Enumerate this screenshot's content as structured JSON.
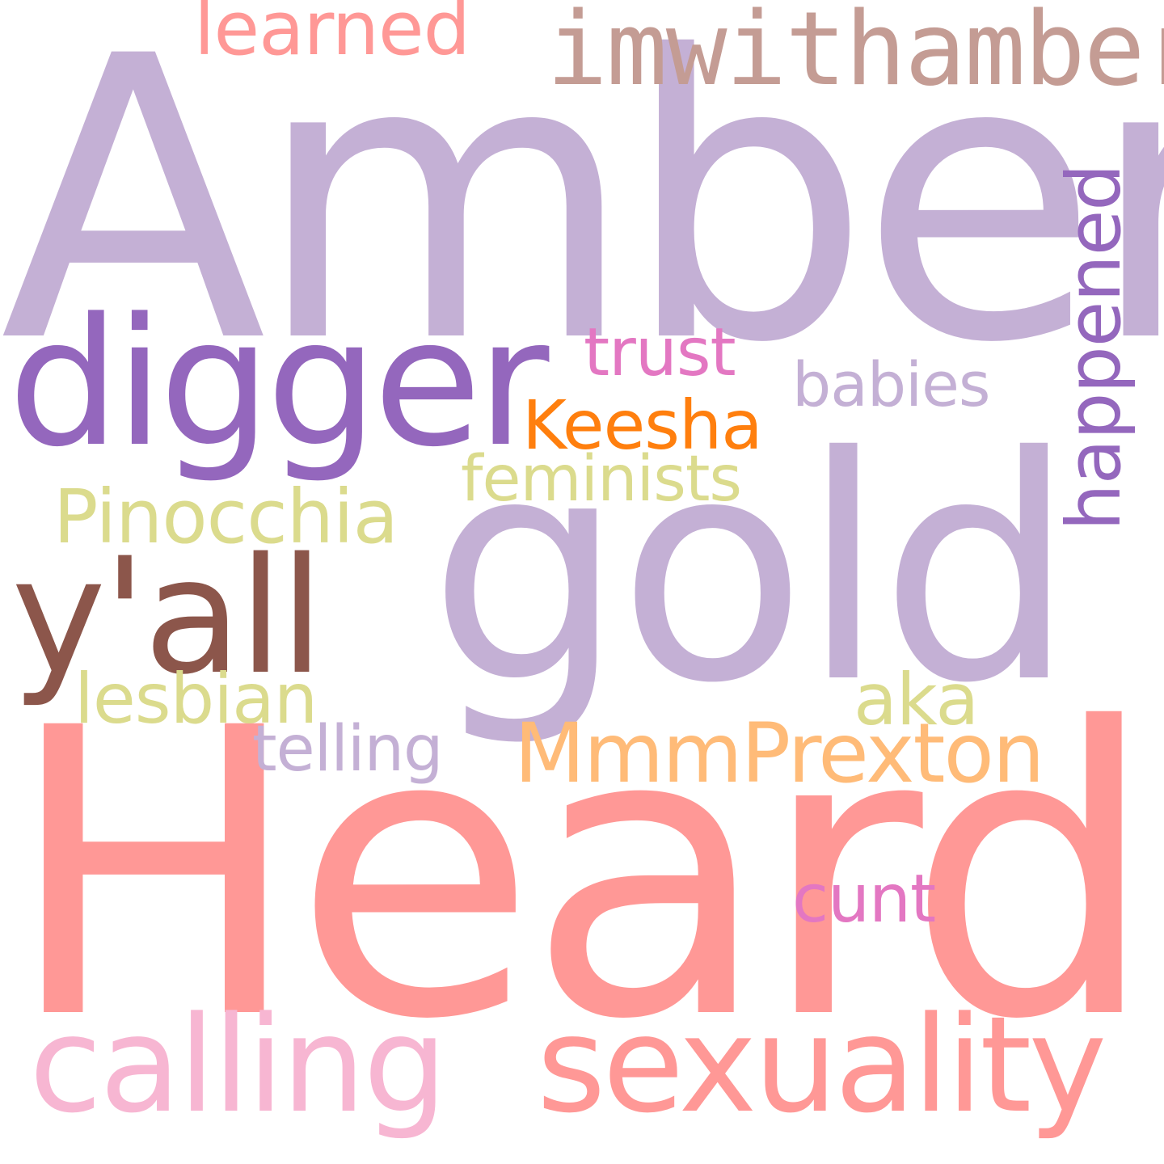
{
  "words": [
    {
      "text": "Amber",
      "color": "#c4b0d5"
    },
    {
      "text": "Heard",
      "color": "#ff9896"
    },
    {
      "text": "gold",
      "color": "#c4b0d5"
    },
    {
      "text": "digger",
      "color": "#9467bd"
    },
    {
      "text": "imwithamber",
      "color": "#c49c94"
    },
    {
      "text": "learned",
      "color": "#ff9896"
    },
    {
      "text": "trust",
      "color": "#e377c2"
    },
    {
      "text": "babies",
      "color": "#c4b0d5"
    },
    {
      "text": "Keesha",
      "color": "#ff7f0e"
    },
    {
      "text": "feminists",
      "color": "#dbdb8d"
    },
    {
      "text": "Pinocchia",
      "color": "#dbdb8d"
    },
    {
      "text": "y'all",
      "color": "#8c564b"
    },
    {
      "text": "lesbian",
      "color": "#dbdb8d"
    },
    {
      "text": "aka",
      "color": "#dbdb8d"
    },
    {
      "text": "telling",
      "color": "#c4b0d5"
    },
    {
      "text": "MmmPrexton",
      "color": "#ffbb78"
    },
    {
      "text": "cunt",
      "color": "#e377c2"
    },
    {
      "text": "calling",
      "color": "#f7b6d2"
    },
    {
      "text": "sexuality",
      "color": "#ff9896"
    },
    {
      "text": "happened",
      "color": "#9467bd"
    }
  ]
}
